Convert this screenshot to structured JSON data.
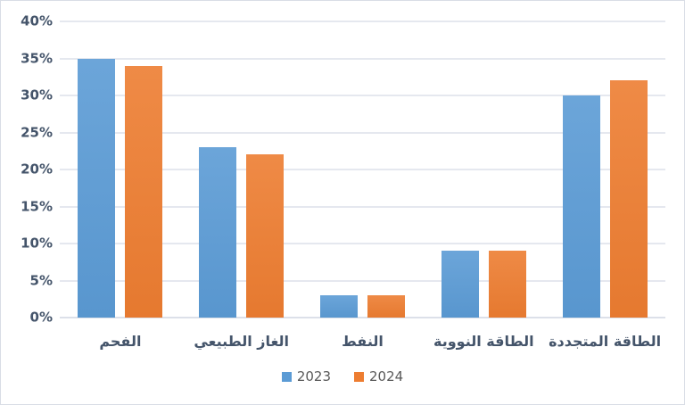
{
  "chart_data": {
    "type": "bar",
    "categories": [
      "الفحم",
      "الغاز الطبيعي",
      "النفط",
      "الطاقة النووية",
      "الطاقة المتجددة"
    ],
    "series": [
      {
        "name": "2023",
        "color": "#5B9BD5",
        "values": [
          35,
          23,
          3,
          9,
          30
        ]
      },
      {
        "name": "2024",
        "color": "#ED7D31",
        "values": [
          34,
          22,
          3,
          9,
          32
        ]
      }
    ],
    "title": "",
    "xlabel": "",
    "ylabel": "",
    "ylim": [
      0,
      40
    ],
    "ytick_step": 5,
    "ytick_labels": [
      "0%",
      "5%",
      "10%",
      "15%",
      "20%",
      "25%",
      "30%",
      "35%",
      "40%"
    ],
    "grid": true,
    "legend_position": "bottom"
  },
  "colors": {
    "axis_label": "#44546A",
    "legend_text": "#595959",
    "gridline": "#E5E8EF",
    "frame_border": "#D9DDE5",
    "background": "#FFFFFF"
  }
}
